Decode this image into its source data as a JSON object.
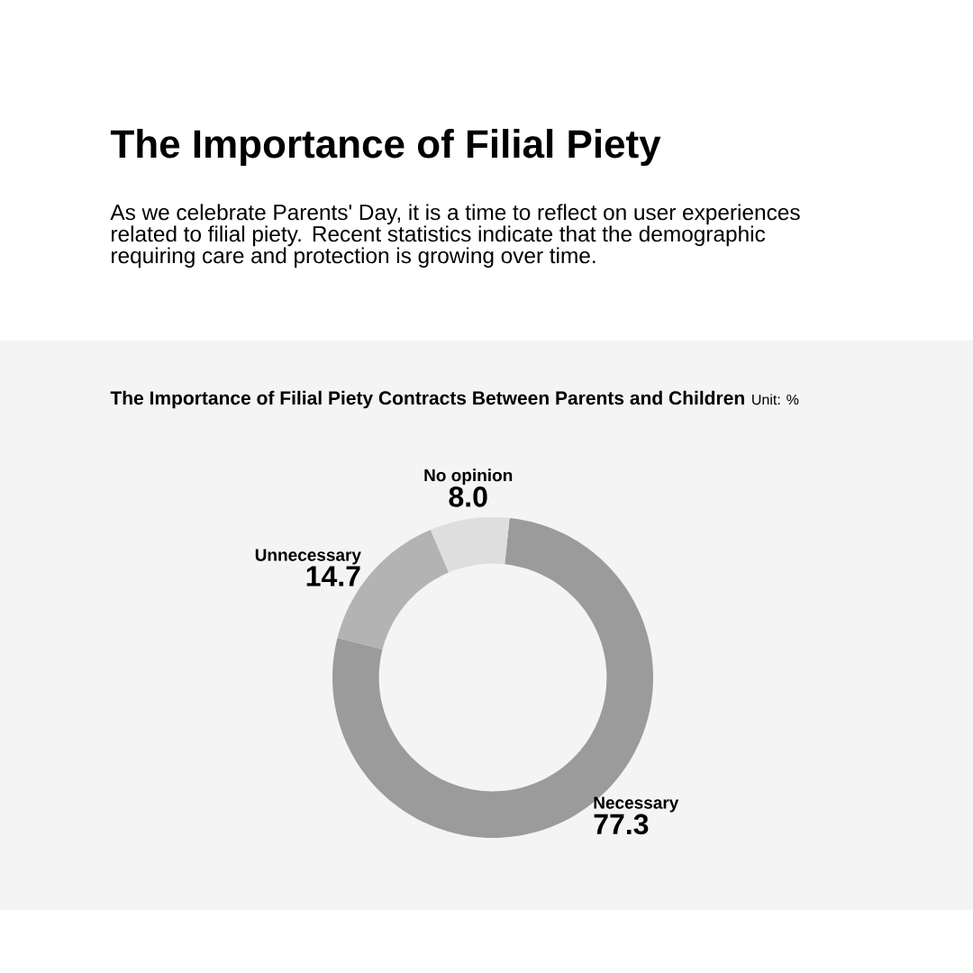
{
  "chart_data": {
    "type": "donut",
    "title": "The Importance of Filial Piety",
    "subtitle": "As we celebrate Parents' Day, it is a time to reflect on user experiences related to filial piety. Recent statistics indicate that the demographic requiring care and protection is growing over time.",
    "annotations": [
      "The Importance of Filial Piety Contracts Between Parents and Children",
      "Unit: %"
    ],
    "categories": [
      "Necessary",
      "Unnecessary",
      "No opinion"
    ],
    "values": [
      77.3,
      14.7,
      8.0
    ],
    "value_labels": [
      "77.3",
      "14.7",
      "8.0"
    ],
    "colors": [
      "#9b9b9b",
      "#b3b3b3",
      "#dedede"
    ]
  }
}
